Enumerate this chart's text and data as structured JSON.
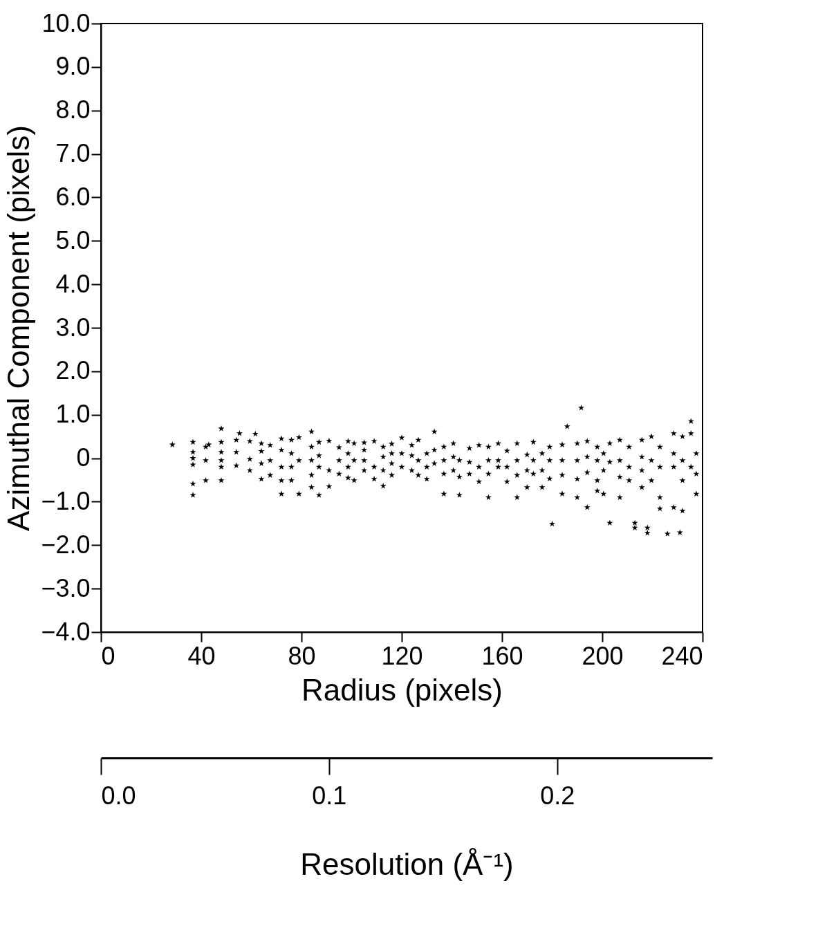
{
  "chart_data": {
    "type": "scatter",
    "xlabel": "Radius (pixels)",
    "ylabel": "Azimuthal Component (pixels)",
    "x2label": "Resolution (Å⁻¹)",
    "xlim": [
      0,
      240
    ],
    "ylim": [
      -4.0,
      10.0
    ],
    "xticks": [
      0,
      40,
      80,
      120,
      160,
      200,
      240
    ],
    "yticks": [
      {
        "value": 10,
        "label": "10.0"
      },
      {
        "value": 9,
        "label": "9.0"
      },
      {
        "value": 8,
        "label": "8.0"
      },
      {
        "value": 7,
        "label": "7.0"
      },
      {
        "value": 6,
        "label": "6.0"
      },
      {
        "value": 5,
        "label": "5.0"
      },
      {
        "value": 4,
        "label": "4.0"
      },
      {
        "value": 3,
        "label": "3.0"
      },
      {
        "value": 2,
        "label": "2.0"
      },
      {
        "value": 1,
        "label": "1.0"
      },
      0,
      {
        "value": -1,
        "label": "−1.0"
      },
      {
        "value": -2,
        "label": "−2.0"
      },
      {
        "value": -3,
        "label": "−3.0"
      },
      {
        "value": -4,
        "label": "−4.0"
      }
    ],
    "x2lim": [
      0.0,
      0.268
    ],
    "x2ticks": [
      {
        "value": 0.0,
        "label": "0.0"
      },
      0.1,
      0.2
    ],
    "marker": "star",
    "grid": false,
    "series": [
      {
        "color": "#000000",
        "x": [
          28.5,
          36.7,
          36.7,
          36.7,
          36.7,
          36.7,
          36.7,
          41.8,
          41.8,
          41.8,
          43,
          48,
          48,
          48,
          48,
          48,
          48,
          54,
          54,
          54,
          55.3,
          59.4,
          59.4,
          59.4,
          61.6,
          64,
          64,
          64,
          64,
          67.5,
          67.5,
          67.5,
          72,
          72,
          72,
          72,
          72,
          76,
          76,
          76,
          76,
          79,
          79,
          79,
          84,
          84,
          84,
          84,
          84,
          87,
          87,
          87,
          87,
          91,
          91,
          91,
          95,
          95,
          95,
          98.6,
          98.6,
          98.6,
          98.6,
          101,
          101,
          101,
          105,
          105,
          105,
          105,
          109,
          109,
          109,
          112.6,
          112.6,
          112.6,
          112.6,
          116,
          116,
          116,
          116,
          120,
          120,
          120,
          124,
          124,
          124,
          126.6,
          126.6,
          126.6,
          130,
          130,
          130,
          133,
          133,
          133,
          136.8,
          136.8,
          136.8,
          136.8,
          140.6,
          140.6,
          140.6,
          143,
          143,
          143,
          147,
          147,
          147,
          150.8,
          150.8,
          150.8,
          154.6,
          154.6,
          154.6,
          154.6,
          158.5,
          158.5,
          158.5,
          162,
          162,
          162,
          166,
          166,
          166,
          166,
          170,
          170,
          170,
          172.5,
          172.5,
          172.5,
          176,
          176,
          176,
          179,
          179,
          179,
          180,
          184,
          184,
          184,
          184,
          186,
          190,
          190,
          190,
          190,
          191.6,
          194,
          194,
          194,
          194,
          198,
          198,
          198,
          198,
          200.5,
          200.5,
          200.5,
          203,
          203,
          203,
          207,
          207,
          207,
          207,
          210.7,
          210.7,
          210.7,
          213,
          213,
          215.8,
          215.8,
          215.8,
          215.8,
          218,
          218,
          219.6,
          219.6,
          219.6,
          223,
          223,
          223,
          223,
          226,
          228.5,
          228.5,
          228.5,
          228.5,
          231,
          232,
          232,
          232,
          232,
          235.4,
          235.4,
          235.4,
          237.5,
          237.5,
          237.5
        ],
        "values": [
          0.31,
          0.37,
          0.14,
          0,
          -0.15,
          -0.59,
          -0.85,
          0.26,
          -0.05,
          -0.51,
          0.31,
          0.68,
          0.37,
          0.14,
          -0.05,
          -0.2,
          -0.51,
          0.42,
          0.14,
          -0.17,
          0.57,
          0.39,
          -0.02,
          -0.28,
          0.56,
          0.34,
          0.16,
          -0.12,
          -0.48,
          0.3,
          -0.05,
          -0.39,
          0.45,
          0.19,
          -0.2,
          -0.51,
          -0.82,
          0.42,
          0.11,
          -0.2,
          -0.51,
          0.48,
          -0.05,
          -0.82,
          0.61,
          0.26,
          -0.05,
          -0.39,
          -0.67,
          0.37,
          0.06,
          -0.2,
          -0.85,
          0.4,
          -0.28,
          -0.65,
          0.25,
          -0.05,
          -0.36,
          0.39,
          0.11,
          -0.2,
          -0.45,
          0.34,
          -0.05,
          -0.51,
          0.36,
          0.19,
          -0.05,
          -0.28,
          0.39,
          -0.2,
          -0.48,
          0.26,
          0.03,
          -0.28,
          -0.64,
          0.33,
          0.11,
          -0.12,
          -0.39,
          0.47,
          0.11,
          -0.2,
          0.3,
          0.06,
          -0.28,
          0.42,
          -0.05,
          -0.39,
          0.11,
          -0.2,
          -0.48,
          0.61,
          0.19,
          -0.12,
          0.26,
          -0.05,
          -0.36,
          -0.82,
          0.34,
          0.03,
          -0.28,
          -0.05,
          -0.43,
          -0.85,
          0.23,
          -0.09,
          -0.36,
          0.3,
          -0.2,
          -0.54,
          0.26,
          -0.05,
          -0.36,
          -0.9,
          0.34,
          -0.05,
          -0.2,
          0.17,
          -0.2,
          -0.54,
          0.34,
          -0.05,
          -0.39,
          -0.9,
          0.08,
          -0.28,
          -0.67,
          0.37,
          -0.05,
          -0.36,
          0.11,
          -0.28,
          -0.67,
          0.26,
          -0.05,
          -0.47,
          -1.51,
          0.31,
          -0.05,
          -0.39,
          -0.82,
          0.73,
          0.34,
          -0.05,
          -0.48,
          -0.9,
          1.16,
          0.39,
          0.03,
          -0.33,
          -1.13,
          0.26,
          -0.05,
          -0.51,
          -0.75,
          0.11,
          -0.28,
          -0.82,
          0.34,
          -0.09,
          -1.49,
          0.42,
          -0.05,
          -0.43,
          -0.9,
          0.26,
          -0.2,
          -0.51,
          -1.49,
          -1.6,
          0.42,
          0.03,
          -0.28,
          -0.67,
          -1.6,
          -1.72,
          0.5,
          -0.05,
          -0.51,
          0.26,
          -0.2,
          -0.9,
          -1.16,
          -1.74,
          0.57,
          0.11,
          -0.2,
          -1.13,
          -1.71,
          0.5,
          -0.05,
          -0.51,
          -1.21,
          0.57,
          0.85,
          -0.2,
          0.11,
          -0.36,
          -0.82
        ]
      }
    ]
  }
}
